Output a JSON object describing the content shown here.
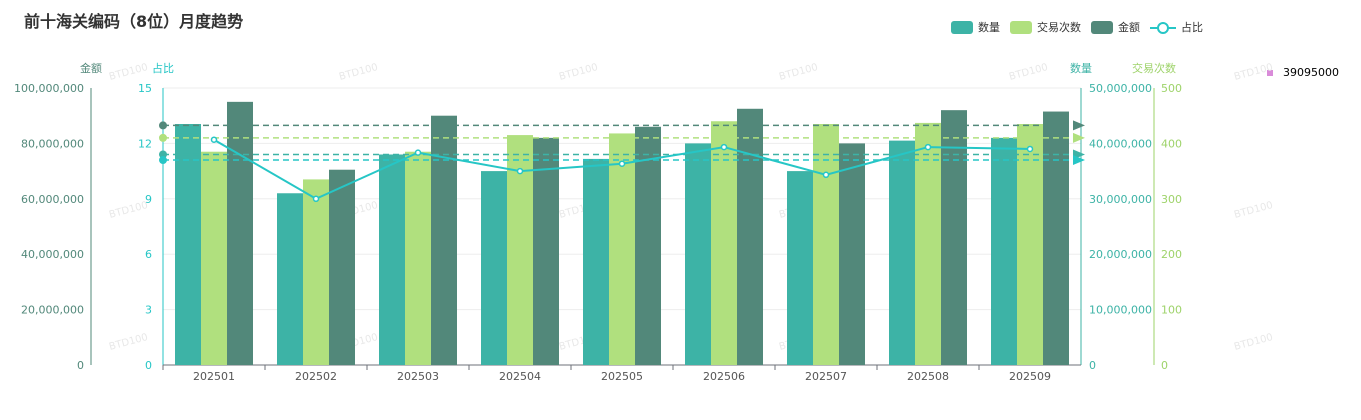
{
  "chart_data": {
    "type": "bar",
    "title": "前十海关编码（8位）月度趋势",
    "categories": [
      "202501",
      "202502",
      "202503",
      "202504",
      "202505",
      "202506",
      "202507",
      "202508",
      "202509"
    ],
    "series": [
      {
        "name": "数量",
        "type": "bar",
        "axis": "数量",
        "color": "#3DB3A6",
        "values": [
          43500000,
          31000000,
          38000000,
          35000000,
          37200000,
          40000000,
          35000000,
          40500000,
          41000000
        ]
      },
      {
        "name": "交易次数",
        "type": "bar",
        "axis": "交易次数",
        "color": "#B0E07E",
        "values": [
          385,
          335,
          385,
          415,
          418,
          440,
          435,
          437,
          435
        ]
      },
      {
        "name": "金额",
        "type": "bar",
        "axis": "金额",
        "color": "#52887A",
        "values": [
          95000000,
          70500000,
          90000000,
          82000000,
          86000000,
          92500000,
          80000000,
          92000000,
          91500000
        ]
      },
      {
        "name": "占比",
        "type": "line",
        "axis": "占比",
        "color": "#26C6C6",
        "values": [
          12.2,
          9.0,
          11.5,
          10.5,
          10.9,
          11.8,
          10.3,
          11.8,
          11.7
        ]
      }
    ],
    "reference_lines": [
      {
        "axis": "金额",
        "value": 86500000,
        "color": "#52887A"
      },
      {
        "axis": "交易次数",
        "value": 410,
        "color": "#B0E07E"
      },
      {
        "axis": "数量",
        "value": 38000000,
        "color": "#3DB3A6"
      },
      {
        "axis": "占比",
        "value": 11.1,
        "color": "#26C6C6"
      }
    ],
    "axes": {
      "金额": {
        "title": "金额",
        "min": 0,
        "max": 100000000,
        "ticks": [
          "0",
          "20,000,000",
          "40,000,000",
          "60,000,000",
          "80,000,000",
          "100,000,000"
        ],
        "color": "#52887A"
      },
      "占比": {
        "title": "占比",
        "min": 0,
        "max": 15,
        "ticks": [
          "0",
          "3",
          "6",
          "9",
          "12",
          "15"
        ],
        "color": "#26C6C6"
      },
      "数量": {
        "title": "数量",
        "min": 0,
        "max": 50000000,
        "ticks": [
          "0",
          "10,000,000",
          "20,000,000",
          "30,000,000",
          "40,000,000",
          "50,000,000"
        ],
        "color": "#3DB3A6"
      },
      "交易次数": {
        "title": "交易次数",
        "min": 0,
        "max": 500,
        "ticks": [
          "0",
          "100",
          "200",
          "300",
          "400",
          "500"
        ],
        "color": "#9ED36A"
      }
    },
    "legend_position": "top-right",
    "grid": true
  },
  "side_note": "39095000",
  "watermark": "BTD100"
}
